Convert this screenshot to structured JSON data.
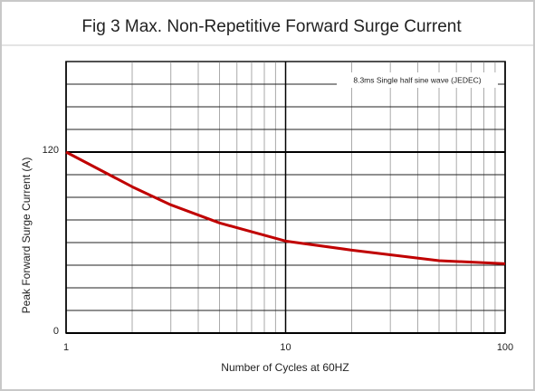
{
  "chart_data": {
    "type": "line",
    "title": "Fig 3 Max. Non-Repetitive Forward Surge Current",
    "annotation": "8.3ms Single half sine wave (JEDEC)",
    "xlabel": "Number of Cycles at 60HZ",
    "ylabel": "Peak Forward Surge Current (A)",
    "xscale": "log",
    "x": [
      1,
      2,
      3,
      5,
      10,
      20,
      50,
      100
    ],
    "series": [
      {
        "color": "#c00000",
        "values": [
          120,
          97,
          85,
          73,
          61,
          55,
          48,
          46
        ]
      }
    ],
    "xlim": [
      1,
      100
    ],
    "xticks": [
      1,
      10,
      100
    ],
    "xgrid": [
      2,
      3,
      4,
      5,
      6,
      7,
      8,
      9,
      20,
      30,
      40,
      50,
      60,
      70,
      80,
      90
    ],
    "ylim": [
      0,
      180
    ],
    "yticks": [
      0,
      120
    ],
    "ygrid": [
      15,
      30,
      45,
      60,
      75,
      90,
      105,
      135,
      150,
      165,
      180
    ],
    "grid": true
  }
}
